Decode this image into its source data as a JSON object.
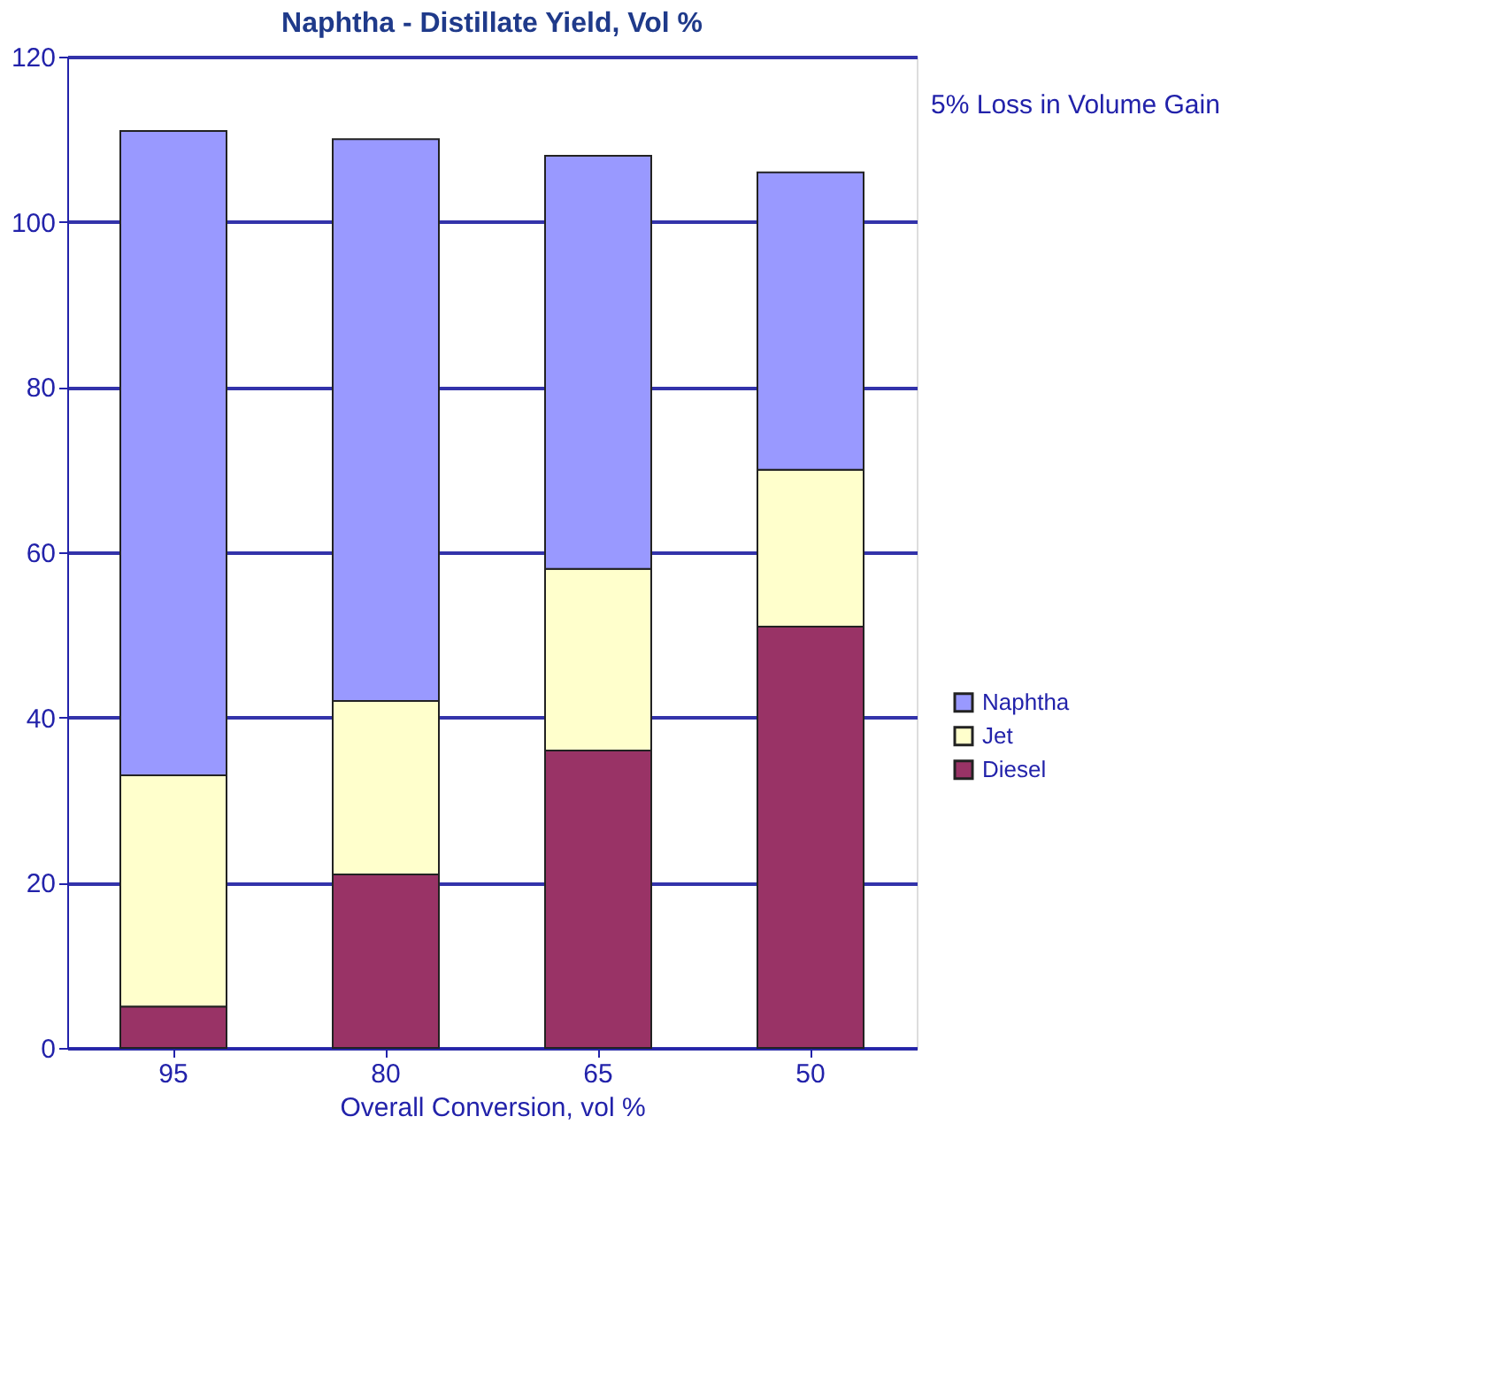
{
  "chart_data": {
    "type": "bar",
    "stacked": true,
    "title": "Naphtha - Distillate Yield, Vol %",
    "xlabel": "Overall Conversion, vol %",
    "categories": [
      "95",
      "80",
      "65",
      "50"
    ],
    "series": [
      {
        "name": "Diesel",
        "color": "#993366",
        "values": [
          5,
          21,
          36,
          51
        ]
      },
      {
        "name": "Jet",
        "color": "#ffffcc",
        "values": [
          28,
          21,
          22,
          19
        ]
      },
      {
        "name": "Naphtha",
        "color": "#9999ff",
        "values": [
          78,
          68,
          50,
          36
        ]
      }
    ],
    "ylim": [
      0,
      120
    ],
    "yticks": [
      0,
      20,
      40,
      60,
      80,
      100,
      120
    ],
    "grid": "y",
    "legend": "right",
    "annotations": [
      "5% Loss in Volume Gain"
    ]
  }
}
